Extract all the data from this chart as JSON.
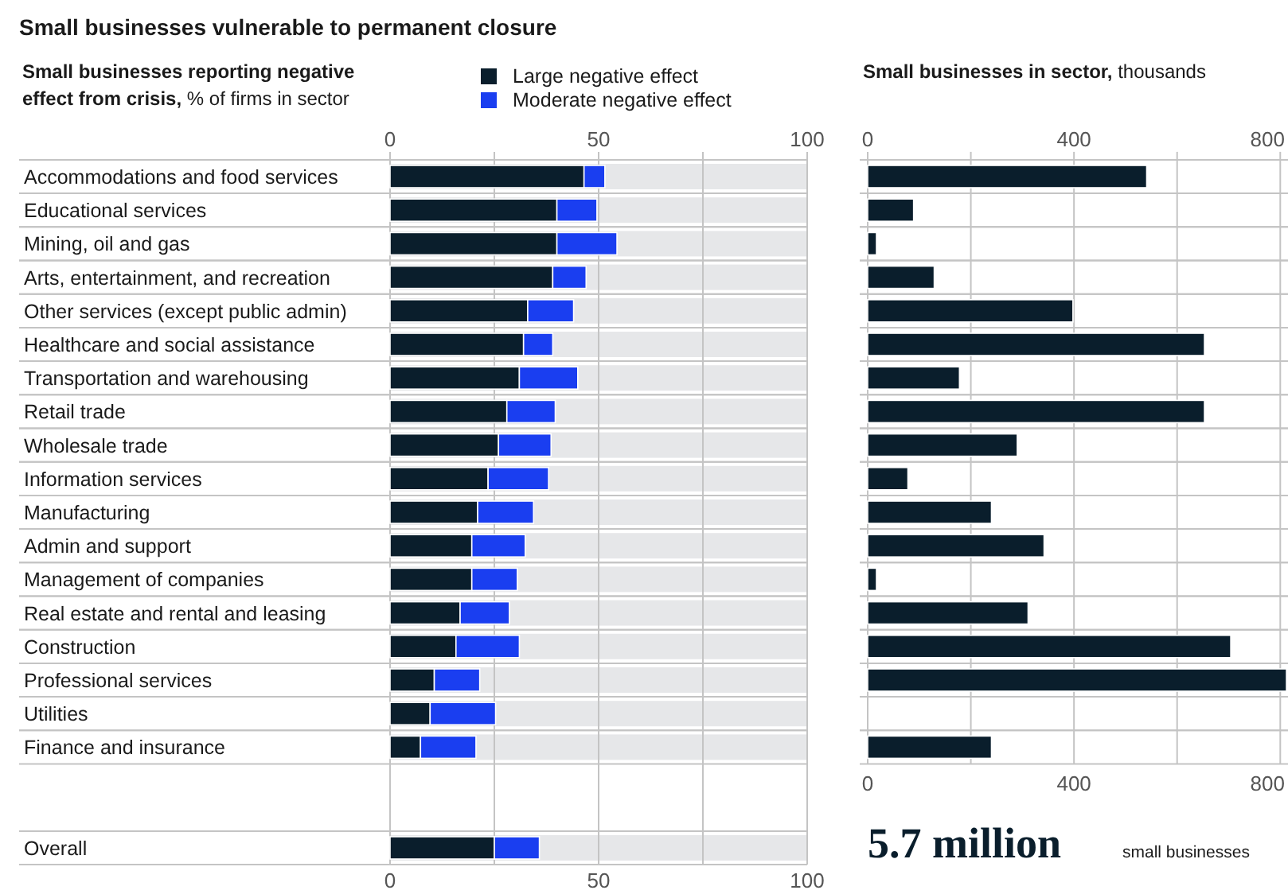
{
  "chart_data": [
    {
      "type": "bar",
      "orientation": "horizontal",
      "stacked": true,
      "title": "Small businesses vulnerable to permanent closure",
      "subtitle": "Small businesses reporting negative effect from crisis,",
      "xlabel": "% of firms in sector",
      "legend": "top",
      "grid": true,
      "categories": [
        "Accommodations and food services",
        "Educational services",
        "Mining, oil and gas",
        "Arts, entertainment, and recreation",
        "Other services (except public admin)",
        "Healthcare and social assistance",
        "Transportation and warehousing",
        "Retail trade",
        "Wholesale trade",
        "Information services",
        "Manufacturing",
        "Admin and support",
        "Management of companies",
        "Real estate and rental and leasing",
        "Construction",
        "Professional services",
        "Utilities",
        "Finance and insurance",
        null,
        null,
        "Overall"
      ],
      "series": [
        {
          "name": "Large negative effect",
          "color": "#0a1e2c",
          "values": [
            46.5,
            40,
            40,
            39,
            33,
            32,
            31,
            28,
            26,
            23.5,
            21,
            19.6,
            19.6,
            16.8,
            15.8,
            10.6,
            9.6,
            7.3,
            null,
            null,
            25
          ]
        },
        {
          "name": "Moderate negative effect",
          "color": "#1a3ef0",
          "values": [
            5,
            9.6,
            14.4,
            8,
            11,
            7,
            14,
            11.6,
            12.6,
            14.5,
            13.4,
            12.8,
            10.9,
            11.8,
            15.2,
            10.9,
            15.7,
            13.3,
            null,
            null,
            10.8
          ]
        }
      ],
      "xlim": [
        0,
        100
      ],
      "xticks": [
        0,
        {
          "value": 25,
          "label": null
        },
        50,
        {
          "value": 75,
          "label": null
        },
        100
      ],
      "x2lim": [
        0,
        100
      ],
      "x2ticks": [
        0,
        {
          "value": 25,
          "label": null
        },
        50,
        {
          "value": 75,
          "label": null
        },
        100
      ]
    },
    {
      "type": "bar",
      "orientation": "horizontal",
      "title": "Small businesses in sector,",
      "xlabel": "thousands",
      "grid": true,
      "tick_labels": "x",
      "categories": [
        null,
        null,
        null,
        null,
        null,
        null,
        null,
        null,
        null,
        null,
        null,
        null,
        null,
        null,
        null,
        null,
        null,
        null
      ],
      "values": [
        541,
        89,
        17,
        129,
        398,
        653,
        178,
        653,
        290,
        78,
        240,
        342,
        17,
        311,
        704,
        812,
        null,
        240
      ],
      "color": "#0a1e2c",
      "xlim": [
        0,
        815
      ],
      "xticks": [
        0,
        {
          "value": 200,
          "label": null
        },
        400,
        {
          "value": 600,
          "label": null
        },
        800
      ],
      "x2lim": [
        0,
        815
      ],
      "x2ticks": [
        0,
        {
          "value": 200,
          "label": null
        },
        400,
        {
          "value": 600,
          "label": null
        },
        800
      ],
      "annotations": [
        "5.7 million",
        "small businesses"
      ]
    }
  ]
}
